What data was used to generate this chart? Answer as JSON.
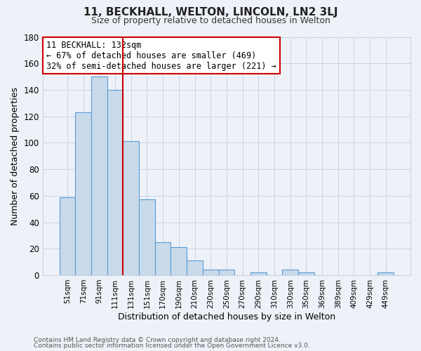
{
  "title": "11, BECKHALL, WELTON, LINCOLN, LN2 3LJ",
  "subtitle": "Size of property relative to detached houses in Welton",
  "xlabel": "Distribution of detached houses by size in Welton",
  "ylabel": "Number of detached properties",
  "bar_labels": [
    "51sqm",
    "71sqm",
    "91sqm",
    "111sqm",
    "131sqm",
    "151sqm",
    "170sqm",
    "190sqm",
    "210sqm",
    "230sqm",
    "250sqm",
    "270sqm",
    "290sqm",
    "310sqm",
    "330sqm",
    "350sqm",
    "369sqm",
    "389sqm",
    "409sqm",
    "429sqm",
    "449sqm"
  ],
  "bar_values": [
    59,
    123,
    150,
    140,
    101,
    57,
    25,
    21,
    11,
    4,
    4,
    0,
    2,
    0,
    4,
    2,
    0,
    0,
    0,
    0,
    2
  ],
  "bar_color": "#c9daea",
  "bar_edge_color": "#5b9bd5",
  "bar_edge_width": 0.8,
  "grid_color": "#c8d4e8",
  "bg_color": "#eef2f8",
  "vline_color": "#cc0000",
  "vline_x_index": 4,
  "annotation_line1": "11 BECKHALL: 132sqm",
  "annotation_line2": "← 67% of detached houses are smaller (469)",
  "annotation_line3": "32% of semi-detached houses are larger (221) →",
  "annotation_box_color": "white",
  "annotation_box_edge": "#cc0000",
  "ylim": [
    0,
    180
  ],
  "yticks": [
    0,
    20,
    40,
    60,
    80,
    100,
    120,
    140,
    160,
    180
  ],
  "footer1": "Contains HM Land Registry data © Crown copyright and database right 2024.",
  "footer2": "Contains public sector information licensed under the Open Government Licence v3.0."
}
